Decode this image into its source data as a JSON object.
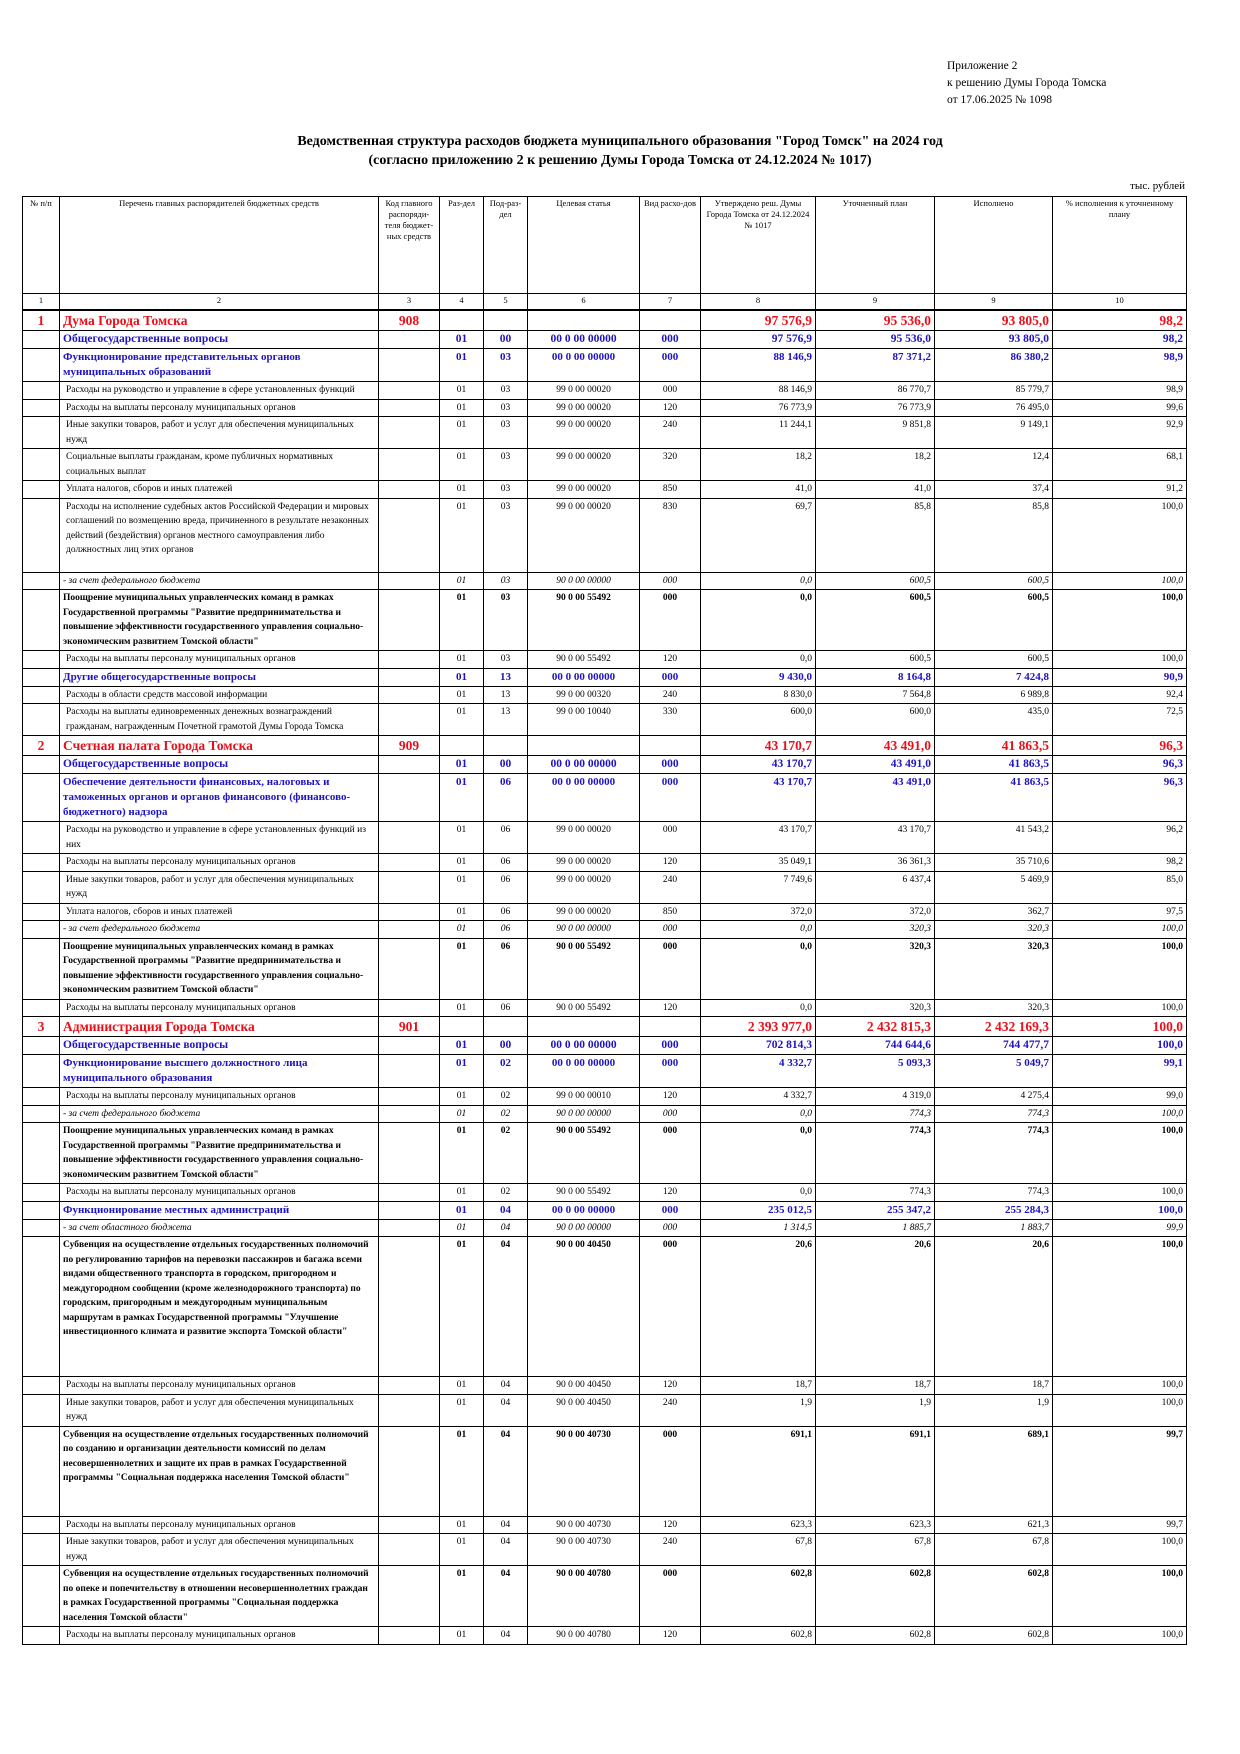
{
  "appendix": {
    "line1": "Приложение 2",
    "line2": "к решению Думы Города Томска",
    "line3": "от 17.06.2025 № 1098"
  },
  "title": {
    "line1": "Ведомственная структура расходов бюджета муниципального образования \"Город Томск\"  на 2024 год",
    "line2": "(согласно приложению 2 к решению Думы Города Томска от 24.12.2024 № 1017)"
  },
  "units": "тыс. рублей",
  "headers": [
    "№ п/п",
    "Перечень главных распорядителей бюджетных средств",
    "Код главного распоряди-теля бюджет-ных средств",
    "Раз-дел",
    "Под-раз-дел",
    "Целевая статья",
    "Вид расхо-дов",
    "Утверждено реш. Думы Города Томска от 24.12.2024 № 1017",
    "Уточненный план",
    "Исполнено",
    "% исполнения к уточненному плану"
  ],
  "header_numbers": [
    "1",
    "2",
    "3",
    "4",
    "5",
    "6",
    "7",
    "8",
    "9",
    "9",
    "10"
  ],
  "rows": [
    {
      "t": "l0",
      "n": "1",
      "name": "Дума Города Томска",
      "code": "908",
      "rz": "",
      "prz": "",
      "cs": "",
      "vr": "",
      "a": "97 576,9",
      "p": "95 536,0",
      "e": "93 805,0",
      "pct": "98,2"
    },
    {
      "t": "l1",
      "n": "",
      "name": "Общегосударственные вопросы",
      "code": "",
      "rz": "01",
      "prz": "00",
      "cs": "00 0 00 00000",
      "vr": "000",
      "a": "97 576,9",
      "p": "95 536,0",
      "e": "93 805,0",
      "pct": "98,2"
    },
    {
      "t": "l2",
      "n": "",
      "name": "Функционирование представительных органов муниципальных образований",
      "code": "",
      "rz": "01",
      "prz": "03",
      "cs": "00 0 00 00000",
      "vr": "000",
      "a": "88 146,9",
      "p": "87 371,2",
      "e": "86 380,2",
      "pct": "98,9"
    },
    {
      "t": "l3",
      "n": "",
      "name": "Расходы на руководство и управление в сфере установленных функций",
      "code": "",
      "rz": "01",
      "prz": "03",
      "cs": "99 0 00 00020",
      "vr": "000",
      "a": "88 146,9",
      "p": "86 770,7",
      "e": "85 779,7",
      "pct": "98,9"
    },
    {
      "t": "l3",
      "n": "",
      "name": "Расходы на выплаты персоналу муниципальных органов",
      "code": "",
      "rz": "01",
      "prz": "03",
      "cs": "99 0 00 00020",
      "vr": "120",
      "a": "76 773,9",
      "p": "76 773,9",
      "e": "76 495,0",
      "pct": "99,6"
    },
    {
      "t": "l3",
      "n": "",
      "name": "Иные закупки товаров, работ и услуг для обеспечения муниципальных нужд",
      "code": "",
      "rz": "01",
      "prz": "03",
      "cs": "99 0 00 00020",
      "vr": "240",
      "a": "11 244,1",
      "p": "9 851,8",
      "e": "9 149,1",
      "pct": "92,9"
    },
    {
      "t": "l3",
      "n": "",
      "name": "Социальные выплаты гражданам, кроме публичных нормативных социальных выплат",
      "code": "",
      "rz": "01",
      "prz": "03",
      "cs": "99 0 00 00020",
      "vr": "320",
      "a": "18,2",
      "p": "18,2",
      "e": "12,4",
      "pct": "68,1"
    },
    {
      "t": "l3",
      "n": "",
      "name": "Уплата налогов, сборов и иных платежей",
      "code": "",
      "rz": "01",
      "prz": "03",
      "cs": "99 0 00 00020",
      "vr": "850",
      "a": "41,0",
      "p": "41,0",
      "e": "37,4",
      "pct": "91,2"
    },
    {
      "t": "l3",
      "n": "",
      "name": "Расходы на исполнение судебных актов Российской Федерации и мировых соглашений по возмещению вреда, причиненного в результате незаконных действий (бездействия) органов местного самоуправления либо должностных лиц этих органов",
      "code": "",
      "rz": "01",
      "prz": "03",
      "cs": "99 0 00 00020",
      "vr": "830",
      "a": "69,7",
      "p": "85,8",
      "e": "85,8",
      "pct": "100,0",
      "h": 74
    },
    {
      "t": "it",
      "n": "",
      "name": "- за счет федерального бюджета",
      "code": "",
      "rz": "01",
      "prz": "03",
      "cs": "90 0 00 00000",
      "vr": "000",
      "a": "0,0",
      "p": "600,5",
      "e": "600,5",
      "pct": "100,0"
    },
    {
      "t": "b",
      "n": "",
      "name": "Поощрение муниципальных управленческих команд в рамках Государственной программы \"Развитие предпринимательства и повышение эффективности государственного управления социально-экономическим развитием Томской области\"",
      "code": "",
      "rz": "01",
      "prz": "03",
      "cs": "90 0 00 55492",
      "vr": "000",
      "a": "0,0",
      "p": "600,5",
      "e": "600,5",
      "pct": "100,0"
    },
    {
      "t": "l3",
      "n": "",
      "name": "Расходы на выплаты персоналу муниципальных органов",
      "code": "",
      "rz": "01",
      "prz": "03",
      "cs": "90 0 00 55492",
      "vr": "120",
      "a": "0,0",
      "p": "600,5",
      "e": "600,5",
      "pct": "100,0"
    },
    {
      "t": "l2",
      "n": "",
      "name": "Другие общегосударственные вопросы",
      "code": "",
      "rz": "01",
      "prz": "13",
      "cs": "00 0 00 00000",
      "vr": "000",
      "a": "9 430,0",
      "p": "8 164,8",
      "e": "7 424,8",
      "pct": "90,9"
    },
    {
      "t": "l3",
      "n": "",
      "name": "Расходы в области средств массовой информации",
      "code": "",
      "rz": "01",
      "prz": "13",
      "cs": "99 0 00 00320",
      "vr": "240",
      "a": "8 830,0",
      "p": "7 564,8",
      "e": "6 989,8",
      "pct": "92,4"
    },
    {
      "t": "l3",
      "n": "",
      "name": "Расходы на выплаты единовременных денежных вознаграждений гражданам, награжденным Почетной грамотой Думы Города Томска",
      "code": "",
      "rz": "01",
      "prz": "13",
      "cs": "99 0 00 10040",
      "vr": "330",
      "a": "600,0",
      "p": "600,0",
      "e": "435,0",
      "pct": "72,5"
    },
    {
      "t": "l0",
      "n": "2",
      "name": "Счетная палата Города Томска",
      "code": "909",
      "rz": "",
      "prz": "",
      "cs": "",
      "vr": "",
      "a": "43 170,7",
      "p": "43 491,0",
      "e": "41 863,5",
      "pct": "96,3"
    },
    {
      "t": "l1",
      "n": "",
      "name": "Общегосударственные вопросы",
      "code": "",
      "rz": "01",
      "prz": "00",
      "cs": "00 0 00 00000",
      "vr": "000",
      "a": "43 170,7",
      "p": "43 491,0",
      "e": "41 863,5",
      "pct": "96,3"
    },
    {
      "t": "l2",
      "n": "",
      "name": "Обеспечение деятельности финансовых, налоговых и таможенных органов и органов финансового (финансово-бюджетного) надзора",
      "code": "",
      "rz": "01",
      "prz": "06",
      "cs": "00 0 00 00000",
      "vr": "000",
      "a": "43 170,7",
      "p": "43 491,0",
      "e": "41 863,5",
      "pct": "96,3"
    },
    {
      "t": "l3",
      "n": "",
      "name": "Расходы на руководство и управление в сфере установленных функций из них",
      "code": "",
      "rz": "01",
      "prz": "06",
      "cs": "99 0 00 00020",
      "vr": "000",
      "a": "43 170,7",
      "p": "43 170,7",
      "e": "41 543,2",
      "pct": "96,2"
    },
    {
      "t": "l3",
      "n": "",
      "name": "Расходы на выплаты персоналу муниципальных органов",
      "code": "",
      "rz": "01",
      "prz": "06",
      "cs": "99 0 00 00020",
      "vr": "120",
      "a": "35 049,1",
      "p": "36 361,3",
      "e": "35 710,6",
      "pct": "98,2"
    },
    {
      "t": "l3",
      "n": "",
      "name": "Иные закупки товаров, работ и услуг для обеспечения муниципальных нужд",
      "code": "",
      "rz": "01",
      "prz": "06",
      "cs": "99 0 00 00020",
      "vr": "240",
      "a": "7 749,6",
      "p": "6 437,4",
      "e": "5 469,9",
      "pct": "85,0"
    },
    {
      "t": "l3",
      "n": "",
      "name": "Уплата налогов, сборов и иных платежей",
      "code": "",
      "rz": "01",
      "prz": "06",
      "cs": "99 0 00 00020",
      "vr": "850",
      "a": "372,0",
      "p": "372,0",
      "e": "362,7",
      "pct": "97,5"
    },
    {
      "t": "it",
      "n": "",
      "name": "- за счет федерального бюджета",
      "code": "",
      "rz": "01",
      "prz": "06",
      "cs": "90 0 00 00000",
      "vr": "000",
      "a": "0,0",
      "p": "320,3",
      "e": "320,3",
      "pct": "100,0"
    },
    {
      "t": "b",
      "n": "",
      "name": "Поощрение муниципальных управленческих команд в рамках Государственной программы \"Развитие предпринимательства и повышение эффективности государственного управления социально-экономическим развитием Томской области\"",
      "code": "",
      "rz": "01",
      "prz": "06",
      "cs": "90 0 00 55492",
      "vr": "000",
      "a": "0,0",
      "p": "320,3",
      "e": "320,3",
      "pct": "100,0"
    },
    {
      "t": "l3",
      "n": "",
      "name": "Расходы на выплаты персоналу муниципальных органов",
      "code": "",
      "rz": "01",
      "prz": "06",
      "cs": "90 0 00 55492",
      "vr": "120",
      "a": "0,0",
      "p": "320,3",
      "e": "320,3",
      "pct": "100,0"
    },
    {
      "t": "l0",
      "n": "3",
      "name": "Администрация Города Томска",
      "code": "901",
      "rz": "",
      "prz": "",
      "cs": "",
      "vr": "",
      "a": "2 393 977,0",
      "p": "2 432 815,3",
      "e": "2 432 169,3",
      "pct": "100,0"
    },
    {
      "t": "l1",
      "n": "",
      "name": "Общегосударственные вопросы",
      "code": "",
      "rz": "01",
      "prz": "00",
      "cs": "00 0 00 00000",
      "vr": "000",
      "a": "702 814,3",
      "p": "744 644,6",
      "e": "744 477,7",
      "pct": "100,0"
    },
    {
      "t": "l2",
      "n": "",
      "name": "Функционирование высшего должностного лица муниципального образования",
      "code": "",
      "rz": "01",
      "prz": "02",
      "cs": "00 0 00 00000",
      "vr": "000",
      "a": "4 332,7",
      "p": "5 093,3",
      "e": "5 049,7",
      "pct": "99,1"
    },
    {
      "t": "l3",
      "n": "",
      "name": "Расходы на выплаты персоналу муниципальных органов",
      "code": "",
      "rz": "01",
      "prz": "02",
      "cs": "99 0 00 00010",
      "vr": "120",
      "a": "4 332,7",
      "p": "4 319,0",
      "e": "4 275,4",
      "pct": "99,0"
    },
    {
      "t": "it",
      "n": "",
      "name": "- за счет федерального бюджета",
      "code": "",
      "rz": "01",
      "prz": "02",
      "cs": "90 0 00 00000",
      "vr": "000",
      "a": "0,0",
      "p": "774,3",
      "e": "774,3",
      "pct": "100,0"
    },
    {
      "t": "b",
      "n": "",
      "name": "Поощрение муниципальных управленческих команд в рамках Государственной программы \"Развитие предпринимательства и повышение эффективности государственного управления социально-экономическим развитием Томской области\"",
      "code": "",
      "rz": "01",
      "prz": "02",
      "cs": "90 0 00 55492",
      "vr": "000",
      "a": "0,0",
      "p": "774,3",
      "e": "774,3",
      "pct": "100,0"
    },
    {
      "t": "l3",
      "n": "",
      "name": "Расходы на выплаты персоналу муниципальных органов",
      "code": "",
      "rz": "01",
      "prz": "02",
      "cs": "90 0 00 55492",
      "vr": "120",
      "a": "0,0",
      "p": "774,3",
      "e": "774,3",
      "pct": "100,0"
    },
    {
      "t": "l2",
      "n": "",
      "name": "Функционирование местных администраций",
      "code": "",
      "rz": "01",
      "prz": "04",
      "cs": "00 0 00 00000",
      "vr": "000",
      "a": "235 012,5",
      "p": "255 347,2",
      "e": "255 284,3",
      "pct": "100,0"
    },
    {
      "t": "it",
      "n": "",
      "name": "- за счет областного бюджета",
      "code": "",
      "rz": "01",
      "prz": "04",
      "cs": "90 0 00 00000",
      "vr": "000",
      "a": "1 314,5",
      "p": "1 885,7",
      "e": "1 883,7",
      "pct": "99,9"
    },
    {
      "t": "b",
      "n": "",
      "name": "Субвенция на осуществление отдельных государственных полномочий по регулированию тарифов на перевозки пассажиров и багажа всеми видами общественного транспорта в городском, пригородном и междугородном сообщении (кроме железнодорожного транспорта) по городским, пригородным и междугородным муниципальным маршрутам в рамках Государственной программы \"Улучшение инвестиционного климата и развитие экспорта Томской области\"",
      "code": "",
      "rz": "01",
      "prz": "04",
      "cs": "90 0 00 40450",
      "vr": "000",
      "a": "20,6",
      "p": "20,6",
      "e": "20,6",
      "pct": "100,0",
      "h": 140
    },
    {
      "t": "l3",
      "n": "",
      "name": "Расходы на выплаты персоналу муниципальных органов",
      "code": "",
      "rz": "01",
      "prz": "04",
      "cs": "90 0 00 40450",
      "vr": "120",
      "a": "18,7",
      "p": "18,7",
      "e": "18,7",
      "pct": "100,0"
    },
    {
      "t": "l3",
      "n": "",
      "name": "Иные закупки товаров, работ и услуг для обеспечения муниципальных нужд",
      "code": "",
      "rz": "01",
      "prz": "04",
      "cs": "90 0 00 40450",
      "vr": "240",
      "a": "1,9",
      "p": "1,9",
      "e": "1,9",
      "pct": "100,0"
    },
    {
      "t": "b",
      "n": "",
      "name": "Субвенция на осуществление отдельных государственных полномочий по созданию и организации деятельности комиссий по делам несовершеннолетних и защите их прав в рамках Государственной программы \"Социальная поддержка населения Томской области\"",
      "code": "",
      "rz": "01",
      "prz": "04",
      "cs": "90 0 00 40730",
      "vr": "000",
      "a": "691,1",
      "p": "691,1",
      "e": "689,1",
      "pct": "99,7",
      "h": 90
    },
    {
      "t": "l3",
      "n": "",
      "name": "Расходы на выплаты персоналу муниципальных органов",
      "code": "",
      "rz": "01",
      "prz": "04",
      "cs": "90 0 00 40730",
      "vr": "120",
      "a": "623,3",
      "p": "623,3",
      "e": "621,3",
      "pct": "99,7"
    },
    {
      "t": "l3",
      "n": "",
      "name": "Иные закупки товаров, работ и услуг для обеспечения муниципальных нужд",
      "code": "",
      "rz": "01",
      "prz": "04",
      "cs": "90 0 00 40730",
      "vr": "240",
      "a": "67,8",
      "p": "67,8",
      "e": "67,8",
      "pct": "100,0"
    },
    {
      "t": "b",
      "n": "",
      "name": "Субвенция на осуществление отдельных государственных полномочий по опеке и попечительству в отношении несовершеннолетних граждан в рамках Государственной программы \"Социальная поддержка населения Томской области\"",
      "code": "",
      "rz": "01",
      "prz": "04",
      "cs": "90 0 00 40780",
      "vr": "000",
      "a": "602,8",
      "p": "602,8",
      "e": "602,8",
      "pct": "100,0"
    },
    {
      "t": "l3",
      "n": "",
      "name": "Расходы на выплаты персоналу муниципальных органов",
      "code": "",
      "rz": "01",
      "prz": "04",
      "cs": "90 0 00 40780",
      "vr": "120",
      "a": "602,8",
      "p": "602,8",
      "e": "602,8",
      "pct": "100,0"
    }
  ]
}
